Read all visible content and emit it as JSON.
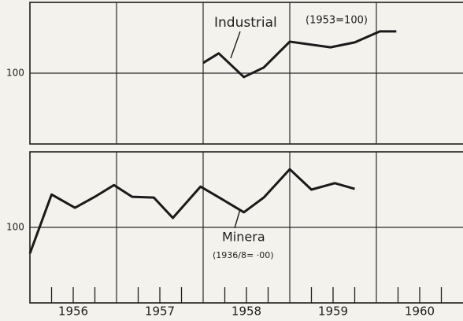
{
  "chart_data": [
    {
      "type": "line",
      "label": "Industrial",
      "note": "(1953=100)",
      "xlim": [
        1956,
        1961
      ],
      "ylim": [
        80,
        120
      ],
      "yticks": [
        100
      ],
      "grid": true,
      "color": "#1a1a1a",
      "x": [
        1958.0,
        1958.18,
        1958.47,
        1958.7,
        1959.0,
        1959.47,
        1959.75,
        1960.04,
        1960.23
      ],
      "values": [
        102.9,
        105.6,
        98.9,
        101.6,
        108.9,
        107.3,
        108.7,
        111.8,
        111.8
      ]
    },
    {
      "type": "line",
      "label": "Minera",
      "note": "(1936/8= ·00)",
      "xlim": [
        1956,
        1961
      ],
      "ylim": [
        80,
        120
      ],
      "yticks": [
        100
      ],
      "grid": true,
      "color": "#1a1a1a",
      "xticks": [
        {
          "value": 1956.5,
          "label": "1956"
        },
        {
          "value": 1957.5,
          "label": "1957"
        },
        {
          "value": 1958.5,
          "label": "1958"
        },
        {
          "value": 1959.5,
          "label": "1959"
        },
        {
          "value": 1960.5,
          "label": "1960"
        }
      ],
      "x": [
        1956.0,
        1956.25,
        1956.52,
        1956.75,
        1956.97,
        1957.18,
        1957.43,
        1957.65,
        1957.97,
        1958.2,
        1958.47,
        1958.7,
        1959.0,
        1959.25,
        1959.52,
        1959.75
      ],
      "values": [
        93.1,
        108.7,
        105.2,
        108.1,
        111.2,
        108.1,
        107.9,
        102.5,
        110.8,
        107.7,
        104.0,
        107.9,
        115.4,
        110.0,
        111.7,
        110.2
      ]
    }
  ]
}
